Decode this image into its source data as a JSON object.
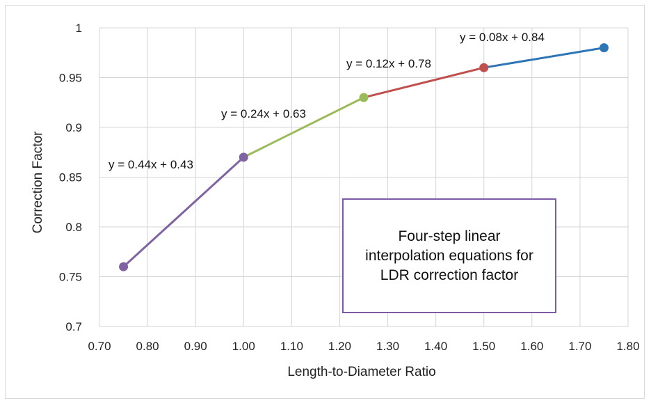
{
  "chart_data": {
    "type": "line",
    "title": "",
    "xlabel": "Length-to-Diameter Ratio",
    "ylabel": "Correction Factor",
    "xlim": [
      0.7,
      1.8
    ],
    "ylim": [
      0.7,
      1.0
    ],
    "x_ticks": [
      "0.70",
      "0.80",
      "0.90",
      "1.00",
      "1.10",
      "1.20",
      "1.30",
      "1.40",
      "1.50",
      "1.60",
      "1.70",
      "1.80"
    ],
    "y_ticks": [
      "0.7",
      "0.75",
      "0.8",
      "0.85",
      "0.9",
      "0.95",
      "1"
    ],
    "grid": true,
    "segments": [
      {
        "color": "#8064a2",
        "points": [
          [
            0.75,
            0.76
          ],
          [
            1.0,
            0.87
          ]
        ],
        "equation": "y = 0.44x + 0.43"
      },
      {
        "color": "#9bbb59",
        "points": [
          [
            1.0,
            0.87
          ],
          [
            1.25,
            0.93
          ]
        ],
        "equation": "y = 0.24x + 0.63"
      },
      {
        "color": "#c0504d",
        "points": [
          [
            1.25,
            0.93
          ],
          [
            1.5,
            0.96
          ]
        ],
        "equation": "y = 0.12x + 0.78"
      },
      {
        "color": "#2e75b6",
        "points": [
          [
            1.5,
            0.96
          ],
          [
            1.75,
            0.98
          ]
        ],
        "equation": "y = 0.08x + 0.84"
      }
    ],
    "markers": [
      {
        "x": 0.75,
        "y": 0.76,
        "color": "#8064a2"
      },
      {
        "x": 1.0,
        "y": 0.87,
        "color": "#8064a2"
      },
      {
        "x": 1.25,
        "y": 0.93,
        "color": "#9bbb59"
      },
      {
        "x": 1.5,
        "y": 0.96,
        "color": "#c0504d"
      },
      {
        "x": 1.75,
        "y": 0.98,
        "color": "#2e75b6"
      }
    ],
    "annotation": "Four-step linear interpolation equations for LDR correction factor"
  }
}
